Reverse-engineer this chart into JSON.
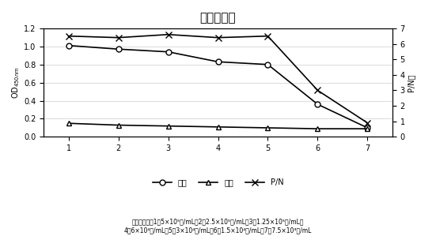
{
  "title": "敏感性试验",
  "x": [
    1,
    2,
    3,
    4,
    5,
    6,
    7
  ],
  "yang_data": [
    1.01,
    0.97,
    0.94,
    0.83,
    0.8,
    0.36,
    0.1
  ],
  "yin_data": [
    0.15,
    0.13,
    0.12,
    0.11,
    0.1,
    0.09,
    0.09
  ],
  "pn_data": [
    6.5,
    6.4,
    6.6,
    6.4,
    6.5,
    3.0,
    0.9
  ],
  "ylabel_left": "OD₀₄₅₀nm",
  "ylabel_right": "P/N值",
  "ylim_left": [
    0,
    1.2
  ],
  "ylim_right": [
    0,
    7
  ],
  "yticks_left": [
    0,
    0.2,
    0.4,
    0.6,
    0.8,
    1.0,
    1.2
  ],
  "yticks_right": [
    0,
    1,
    2,
    3,
    4,
    5,
    6,
    7
  ],
  "xlabel_note": "抗原（个数）1：5×10⁵个/mL；2：2.5×10⁵个/mL；3：1.25×10⁵个/mL；\n4：6×10⁴个/mL；5：3×10⁴个/mL；6：1.5×10⁴个/mL；7：7.5×10³个/mL",
  "legend_labels": [
    "阳性",
    "阴性",
    "P/N"
  ],
  "yang_color": "black",
  "yin_color": "black",
  "pn_color": "black",
  "background": "white",
  "grid_color": "#cccccc"
}
